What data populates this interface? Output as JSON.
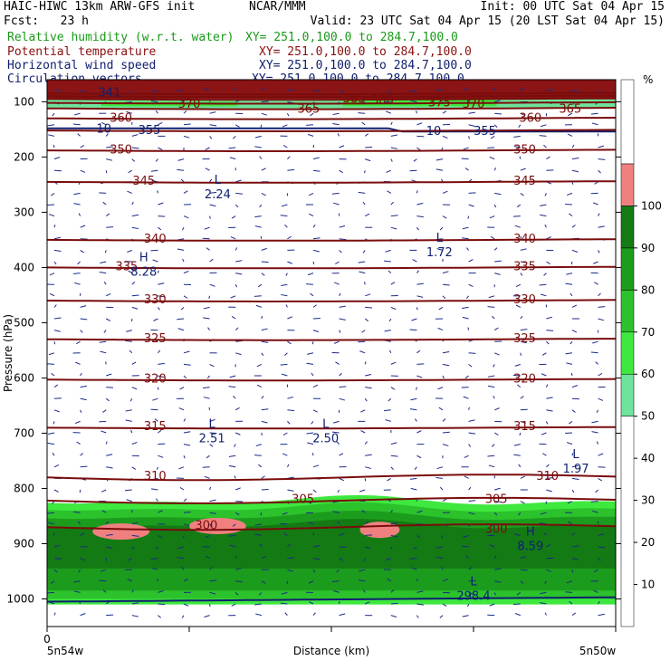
{
  "header": {
    "model": "HAIC-HIWC 13km ARW-GFS init",
    "org": "NCAR/MMM",
    "init": "Init: 00 UTC Sat 04 Apr 15",
    "fcst": "Fcst:   23 h",
    "valid": "Valid: 23 UTC Sat 04 Apr 15 (20 LST Sat 04 Apr 15)",
    "fields": [
      {
        "name": "Relative humidity (w.r.t. water)",
        "xy": "XY= 251.0,100.0 to 284.7,100.0",
        "color": "#1a9a1a"
      },
      {
        "name": "Potential temperature",
        "xy": "XY= 251.0,100.0 to 284.7,100.0",
        "color": "#8b1010"
      },
      {
        "name": "Horizontal wind speed",
        "xy": "XY= 251.0,100.0 to 284.7,100.0",
        "color": "#102070"
      },
      {
        "name": "Circulation vectors",
        "xy": "XY= 251.0,100.0 to 284.7,100.0",
        "color": "#102070"
      }
    ]
  },
  "chart_data": {
    "type": "contour",
    "ylabel": "Pressure (hPa)",
    "xlabel": "Distance (km)",
    "x_start_tick": "0",
    "x_left_label": "5n54w",
    "x_right_label": "5n50w",
    "yticks": [
      100,
      200,
      300,
      400,
      500,
      600,
      700,
      800,
      900,
      1000
    ],
    "ylim": [
      1050,
      60
    ],
    "colorbar": {
      "unit": "%",
      "ticks": [
        10,
        20,
        30,
        40,
        50,
        60,
        70,
        80,
        90,
        100
      ],
      "bands": [
        {
          "range": [
            0,
            50
          ],
          "color": "#ffffff"
        },
        {
          "range": [
            50,
            60
          ],
          "color": "#6ee39b"
        },
        {
          "range": [
            60,
            70
          ],
          "color": "#3ee83e"
        },
        {
          "range": [
            70,
            80
          ],
          "color": "#2cc22c"
        },
        {
          "range": [
            80,
            90
          ],
          "color": "#1c9c1c"
        },
        {
          "range": [
            90,
            100
          ],
          "color": "#147a14"
        },
        {
          "range": [
            100,
            110
          ],
          "color": "#f08080"
        },
        {
          "range": [
            110,
            130
          ],
          "color": "#ffffff"
        }
      ]
    },
    "isentropes": [
      {
        "theta": 300,
        "p": 870
      },
      {
        "theta": 305,
        "p": 822
      },
      {
        "theta": 310,
        "p": 780
      },
      {
        "theta": 315,
        "p": 690
      },
      {
        "theta": 320,
        "p": 603
      },
      {
        "theta": 325,
        "p": 530
      },
      {
        "theta": 330,
        "p": 460
      },
      {
        "theta": 335,
        "p": 400
      },
      {
        "theta": 340,
        "p": 350
      },
      {
        "theta": 345,
        "p": 245
      },
      {
        "theta": 350,
        "p": 188
      },
      {
        "theta": 355,
        "p": 152
      },
      {
        "theta": 360,
        "p": 130
      },
      {
        "theta": 365,
        "p": 112
      },
      {
        "theta": 370,
        "p": 102
      },
      {
        "theta": 375,
        "p": 95
      },
      {
        "theta": 380,
        "p": 90
      },
      {
        "theta": 385,
        "p": 85
      }
    ],
    "isentrope_labels": [
      {
        "text": "300",
        "x": 0.28,
        "p": 866
      },
      {
        "text": "300",
        "x": 0.79,
        "p": 872
      },
      {
        "text": "305",
        "x": 0.45,
        "p": 818
      },
      {
        "text": "305",
        "x": 0.79,
        "p": 818
      },
      {
        "text": "310",
        "x": 0.19,
        "p": 776
      },
      {
        "text": "310",
        "x": 0.88,
        "p": 776
      },
      {
        "text": "315",
        "x": 0.19,
        "p": 686
      },
      {
        "text": "315",
        "x": 0.84,
        "p": 686
      },
      {
        "text": "320",
        "x": 0.19,
        "p": 600
      },
      {
        "text": "320",
        "x": 0.84,
        "p": 600
      },
      {
        "text": "325",
        "x": 0.19,
        "p": 527
      },
      {
        "text": "325",
        "x": 0.84,
        "p": 527
      },
      {
        "text": "330",
        "x": 0.19,
        "p": 457
      },
      {
        "text": "330",
        "x": 0.84,
        "p": 457
      },
      {
        "text": "335",
        "x": 0.14,
        "p": 397
      },
      {
        "text": "335",
        "x": 0.84,
        "p": 397
      },
      {
        "text": "340",
        "x": 0.19,
        "p": 347
      },
      {
        "text": "340",
        "x": 0.84,
        "p": 347
      },
      {
        "text": "345",
        "x": 0.17,
        "p": 242
      },
      {
        "text": "345",
        "x": 0.84,
        "p": 242
      },
      {
        "text": "350",
        "x": 0.13,
        "p": 185
      },
      {
        "text": "350",
        "x": 0.84,
        "p": 185
      },
      {
        "text": "360",
        "x": 0.13,
        "p": 128
      },
      {
        "text": "360",
        "x": 0.85,
        "p": 128
      },
      {
        "text": "365",
        "x": 0.46,
        "p": 112
      },
      {
        "text": "365",
        "x": 0.92,
        "p": 112
      },
      {
        "text": "370",
        "x": 0.25,
        "p": 103
      },
      {
        "text": "375",
        "x": 0.69,
        "p": 100
      },
      {
        "text": "380",
        "x": 0.59,
        "p": 96
      },
      {
        "text": "385",
        "x": 0.54,
        "p": 93
      },
      {
        "text": "370",
        "x": 0.75,
        "p": 103
      }
    ],
    "wind_speed_labels": [
      {
        "text": "10",
        "x": 0.1,
        "p": 148
      },
      {
        "text": "10",
        "x": 0.68,
        "p": 152
      },
      {
        "text": "355",
        "x": 0.18,
        "p": 150
      },
      {
        "text": "355",
        "x": 0.77,
        "p": 152
      },
      {
        "text": "341",
        "x": 0.11,
        "p": 82
      }
    ],
    "extrema": [
      {
        "kind": "L",
        "value": "2.24",
        "x": 0.3,
        "p": 268
      },
      {
        "kind": "L",
        "value": "1.72",
        "x": 0.69,
        "p": 373
      },
      {
        "kind": "H",
        "value": "8.28",
        "x": 0.17,
        "p": 408
      },
      {
        "kind": "L",
        "value": "2.51",
        "x": 0.29,
        "p": 710
      },
      {
        "kind": "L",
        "value": "2.50",
        "x": 0.49,
        "p": 710
      },
      {
        "kind": "L",
        "value": "1.97",
        "x": 0.93,
        "p": 765
      },
      {
        "kind": "H",
        "value": "8.59",
        "x": 0.85,
        "p": 905
      },
      {
        "kind": "L",
        "value": "298.4",
        "x": 0.75,
        "p": 995
      }
    ]
  }
}
